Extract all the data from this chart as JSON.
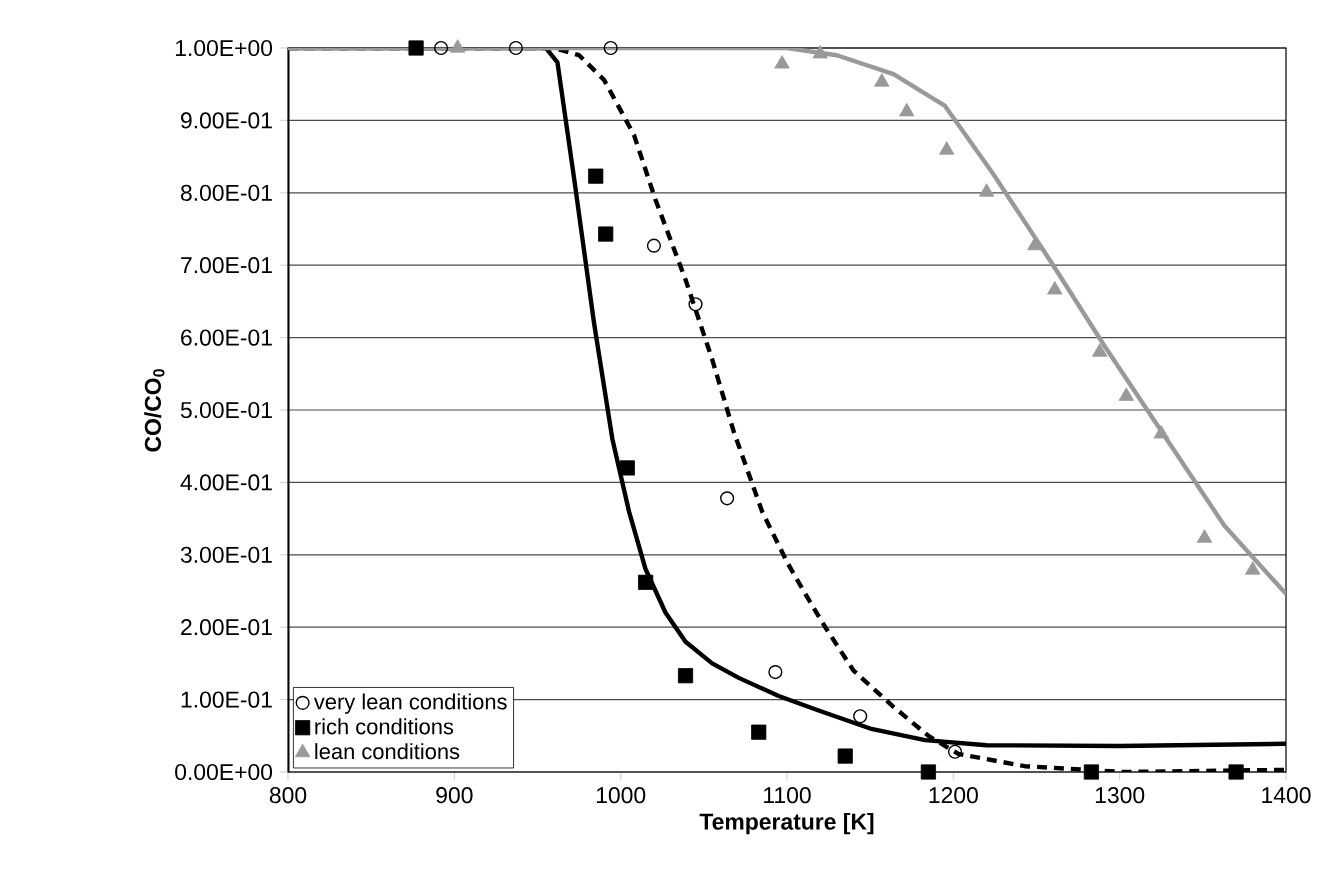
{
  "chart_data": {
    "type": "scatter",
    "xlabel": "Temperature [K]",
    "ylabel": "CO/CO$_{0}$",
    "xlim": [
      800,
      1400
    ],
    "xticks": [
      800,
      900,
      1000,
      1100,
      1200,
      1300,
      1400
    ],
    "ylim": [
      0,
      1
    ],
    "yticks": [
      {
        "value": 0,
        "label": "0.00E+00"
      },
      {
        "value": 0.1,
        "label": "1.00E-01"
      },
      {
        "value": 0.2,
        "label": "2.00E-01"
      },
      {
        "value": 0.3,
        "label": "3.00E-01"
      },
      {
        "value": 0.4,
        "label": "4.00E-01"
      },
      {
        "value": 0.5,
        "label": "5.00E-01"
      },
      {
        "value": 0.6,
        "label": "6.00E-01"
      },
      {
        "value": 0.7,
        "label": "7.00E-01"
      },
      {
        "value": 0.8,
        "label": "8.00E-01"
      },
      {
        "value": 0.9,
        "label": "9.00E-01"
      },
      {
        "value": 1,
        "label": "1.00E+00"
      }
    ],
    "grid": "y",
    "legend": "bottom left",
    "series": [
      {
        "name": "very lean conditions",
        "marker": "circle",
        "color": "#000000",
        "x": [
          892,
          937,
          994,
          1020,
          1045,
          1064,
          1093,
          1144,
          1201
        ],
        "values": [
          1.0,
          1.0,
          1.0,
          0.727,
          0.646,
          0.378,
          0.138,
          0.077,
          0.028
        ]
      },
      {
        "name": "rich conditions",
        "marker": "square",
        "color": "#000000",
        "x": [
          877,
          985,
          991,
          1004,
          1015,
          1039,
          1083,
          1135,
          1185,
          1283,
          1370
        ],
        "values": [
          1.0,
          0.823,
          0.743,
          0.42,
          0.262,
          0.133,
          0.055,
          0.022,
          0,
          0,
          0
        ]
      },
      {
        "name": "lean conditions",
        "marker": "triangle",
        "color": "#999999",
        "x": [
          902,
          1097,
          1120,
          1157,
          1172,
          1196,
          1220,
          1249,
          1261,
          1288,
          1304,
          1325,
          1351,
          1380
        ],
        "values": [
          1.0,
          0.978,
          0.992,
          0.953,
          0.912,
          0.859,
          0.801,
          0.727,
          0.666,
          0.58,
          0.519,
          0.467,
          0.323,
          0.279
        ]
      },
      {
        "type": "line",
        "line_style": "dashed",
        "color": "#000000",
        "x": [
          800,
          960,
          975,
          990,
          1008,
          1021,
          1039,
          1055,
          1068,
          1085,
          1100,
          1111,
          1123,
          1140,
          1164,
          1185,
          1203,
          1243,
          1303,
          1400
        ],
        "values": [
          1,
          1,
          0.99,
          0.956,
          0.88,
          0.79,
          0.68,
          0.57,
          0.47,
          0.36,
          0.29,
          0.246,
          0.2,
          0.14,
          0.09,
          0.05,
          0.025,
          0.008,
          0,
          0.003
        ]
      },
      {
        "type": "line",
        "line_style": "solid",
        "color": "#000000",
        "x": [
          800,
          955,
          962,
          972,
          984,
          995,
          1005,
          1015,
          1027,
          1039,
          1055,
          1071,
          1095,
          1119,
          1150,
          1183,
          1220,
          1300,
          1400
        ],
        "values": [
          1,
          1,
          0.98,
          0.82,
          0.62,
          0.46,
          0.36,
          0.28,
          0.22,
          0.18,
          0.15,
          0.13,
          0.105,
          0.085,
          0.06,
          0.044,
          0.037,
          0.036,
          0.039
        ]
      },
      {
        "type": "line",
        "line_style": "solid",
        "color": "#999999",
        "x": [
          800,
          1100,
          1130,
          1164,
          1195,
          1224,
          1260,
          1291,
          1323,
          1363,
          1400
        ],
        "values": [
          1,
          1,
          0.99,
          0.964,
          0.92,
          0.826,
          0.7,
          0.588,
          0.478,
          0.34,
          0.246
        ]
      }
    ]
  }
}
